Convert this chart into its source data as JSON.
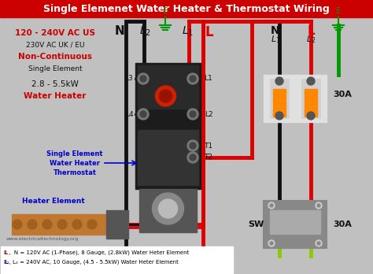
{
  "title": "Single Elemenet Water Heater & Thermostat Wiring",
  "title_bg": "#cc0000",
  "title_color": "#ffffff",
  "bg_color": "#bebebe",
  "footer_line1": "L ,  N = 120V AC (1-Phase), 8 Gauge, (2.8kW) Water Heter Element",
  "footer_line2": "L₁, L₂ = 240V AC, 10 Gauge, (4.5 - 5.5kW) Water Heter Element",
  "website": "www.electricaltechnology.org",
  "info_lines": [
    {
      "text": "120 - 240V AC US",
      "color": "#cc0000",
      "bold": true,
      "size": 7.5
    },
    {
      "text": "230V AC UK / EU",
      "color": "#111111",
      "bold": false,
      "size": 6.5
    },
    {
      "text": "Non-Continuous",
      "color": "#cc0000",
      "bold": true,
      "size": 7.5
    },
    {
      "text": "Single Element",
      "color": "#111111",
      "bold": false,
      "size": 6.5
    },
    {
      "text": "2.8 - 5.5kW",
      "color": "#111111",
      "bold": false,
      "size": 7.5
    },
    {
      "text": "Water Heater",
      "color": "#cc0000",
      "bold": true,
      "size": 7.5
    }
  ]
}
